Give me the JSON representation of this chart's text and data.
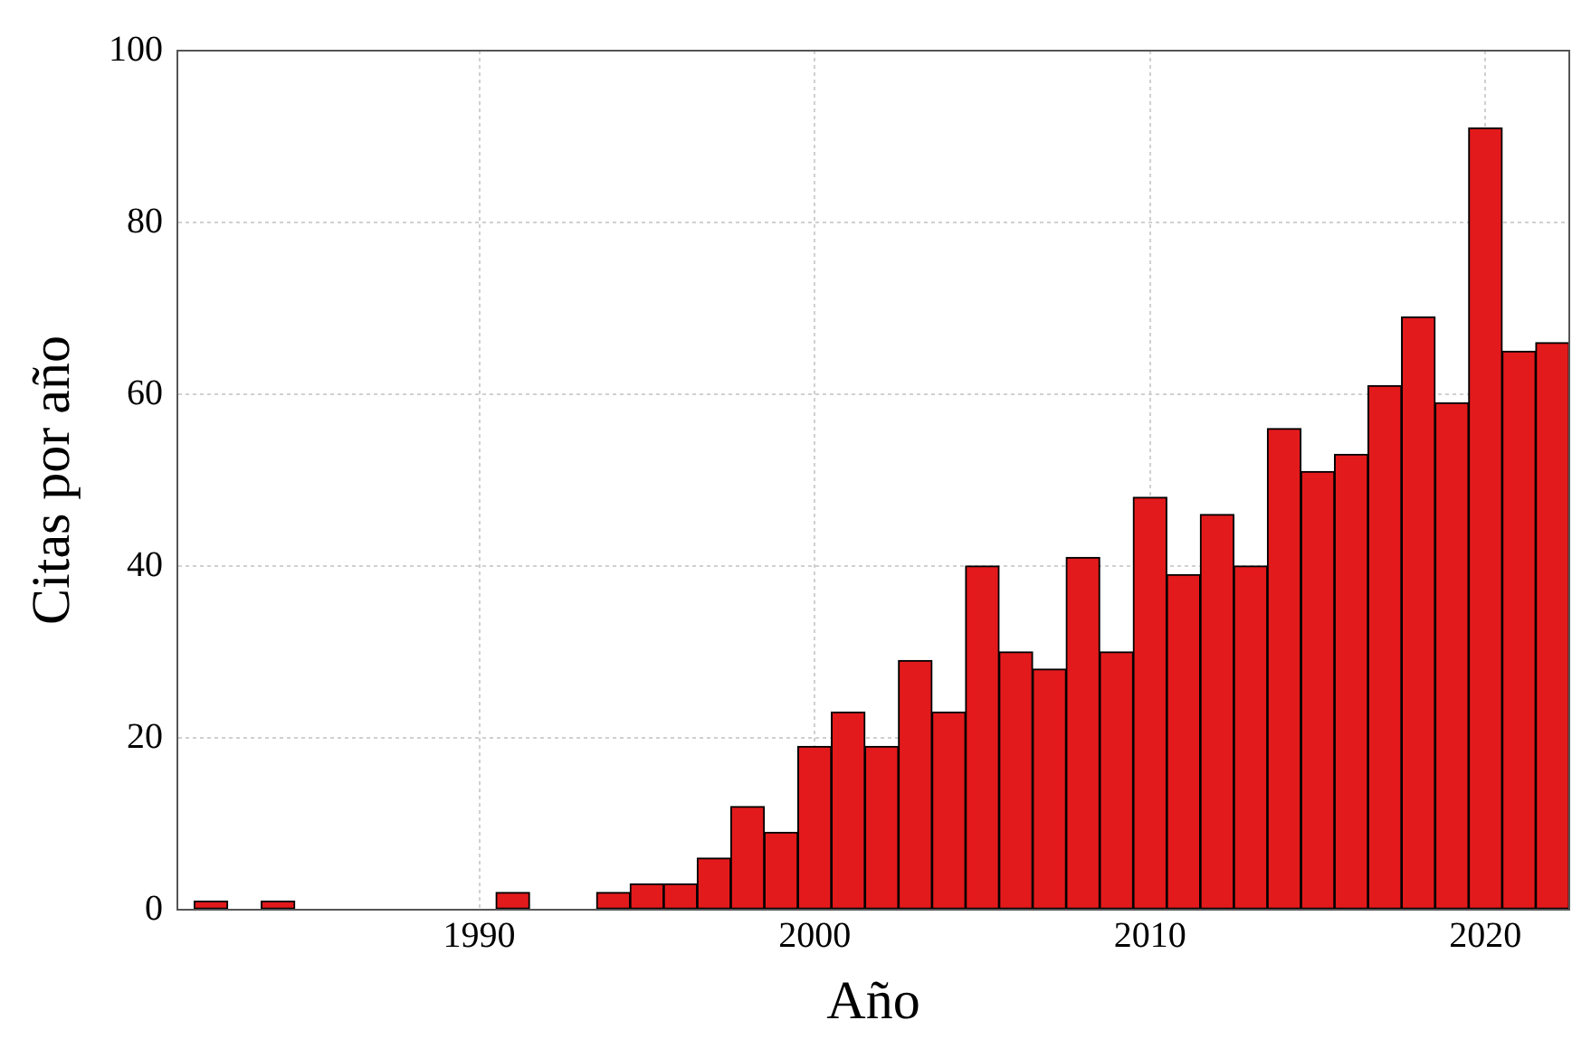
{
  "chart_data": {
    "type": "histogram",
    "xlabel": "Año",
    "ylabel": "Citas por año",
    "bins": [
      1981.5,
      1982.5,
      1983.5,
      1984.5,
      1985.5,
      1986.5,
      1987.5,
      1988.5,
      1989.5,
      1990.5,
      1991.5,
      1992.5,
      1993.5,
      1994.5,
      1995.5,
      1996.5,
      1997.5,
      1998.5,
      1999.5,
      2000.5,
      2001.5,
      2002.5,
      2003.5,
      2004.5,
      2005.5,
      2006.5,
      2007.5,
      2008.5,
      2009.5,
      2010.5,
      2011.5,
      2012.5,
      2013.5,
      2014.5,
      2015.5,
      2016.5,
      2017.5,
      2018.5,
      2019.5,
      2020.5,
      2021.5,
      2022.5
    ],
    "values": [
      1,
      0,
      1,
      0,
      0,
      0,
      0,
      0,
      0,
      2,
      0,
      0,
      2,
      3,
      3,
      6,
      12,
      9,
      19,
      23,
      19,
      29,
      23,
      40,
      30,
      28,
      41,
      30,
      48,
      39,
      46,
      40,
      56,
      51,
      53,
      61,
      69,
      59,
      91,
      65,
      66
    ],
    "color": "#e31a1c",
    "xlim": [
      1981,
      2022.5
    ],
    "xticks": [
      1990,
      2000,
      2010,
      2020
    ],
    "ylim": [
      0,
      100
    ],
    "yticks": [
      0,
      20,
      40,
      60,
      80,
      100
    ],
    "grid": true
  }
}
